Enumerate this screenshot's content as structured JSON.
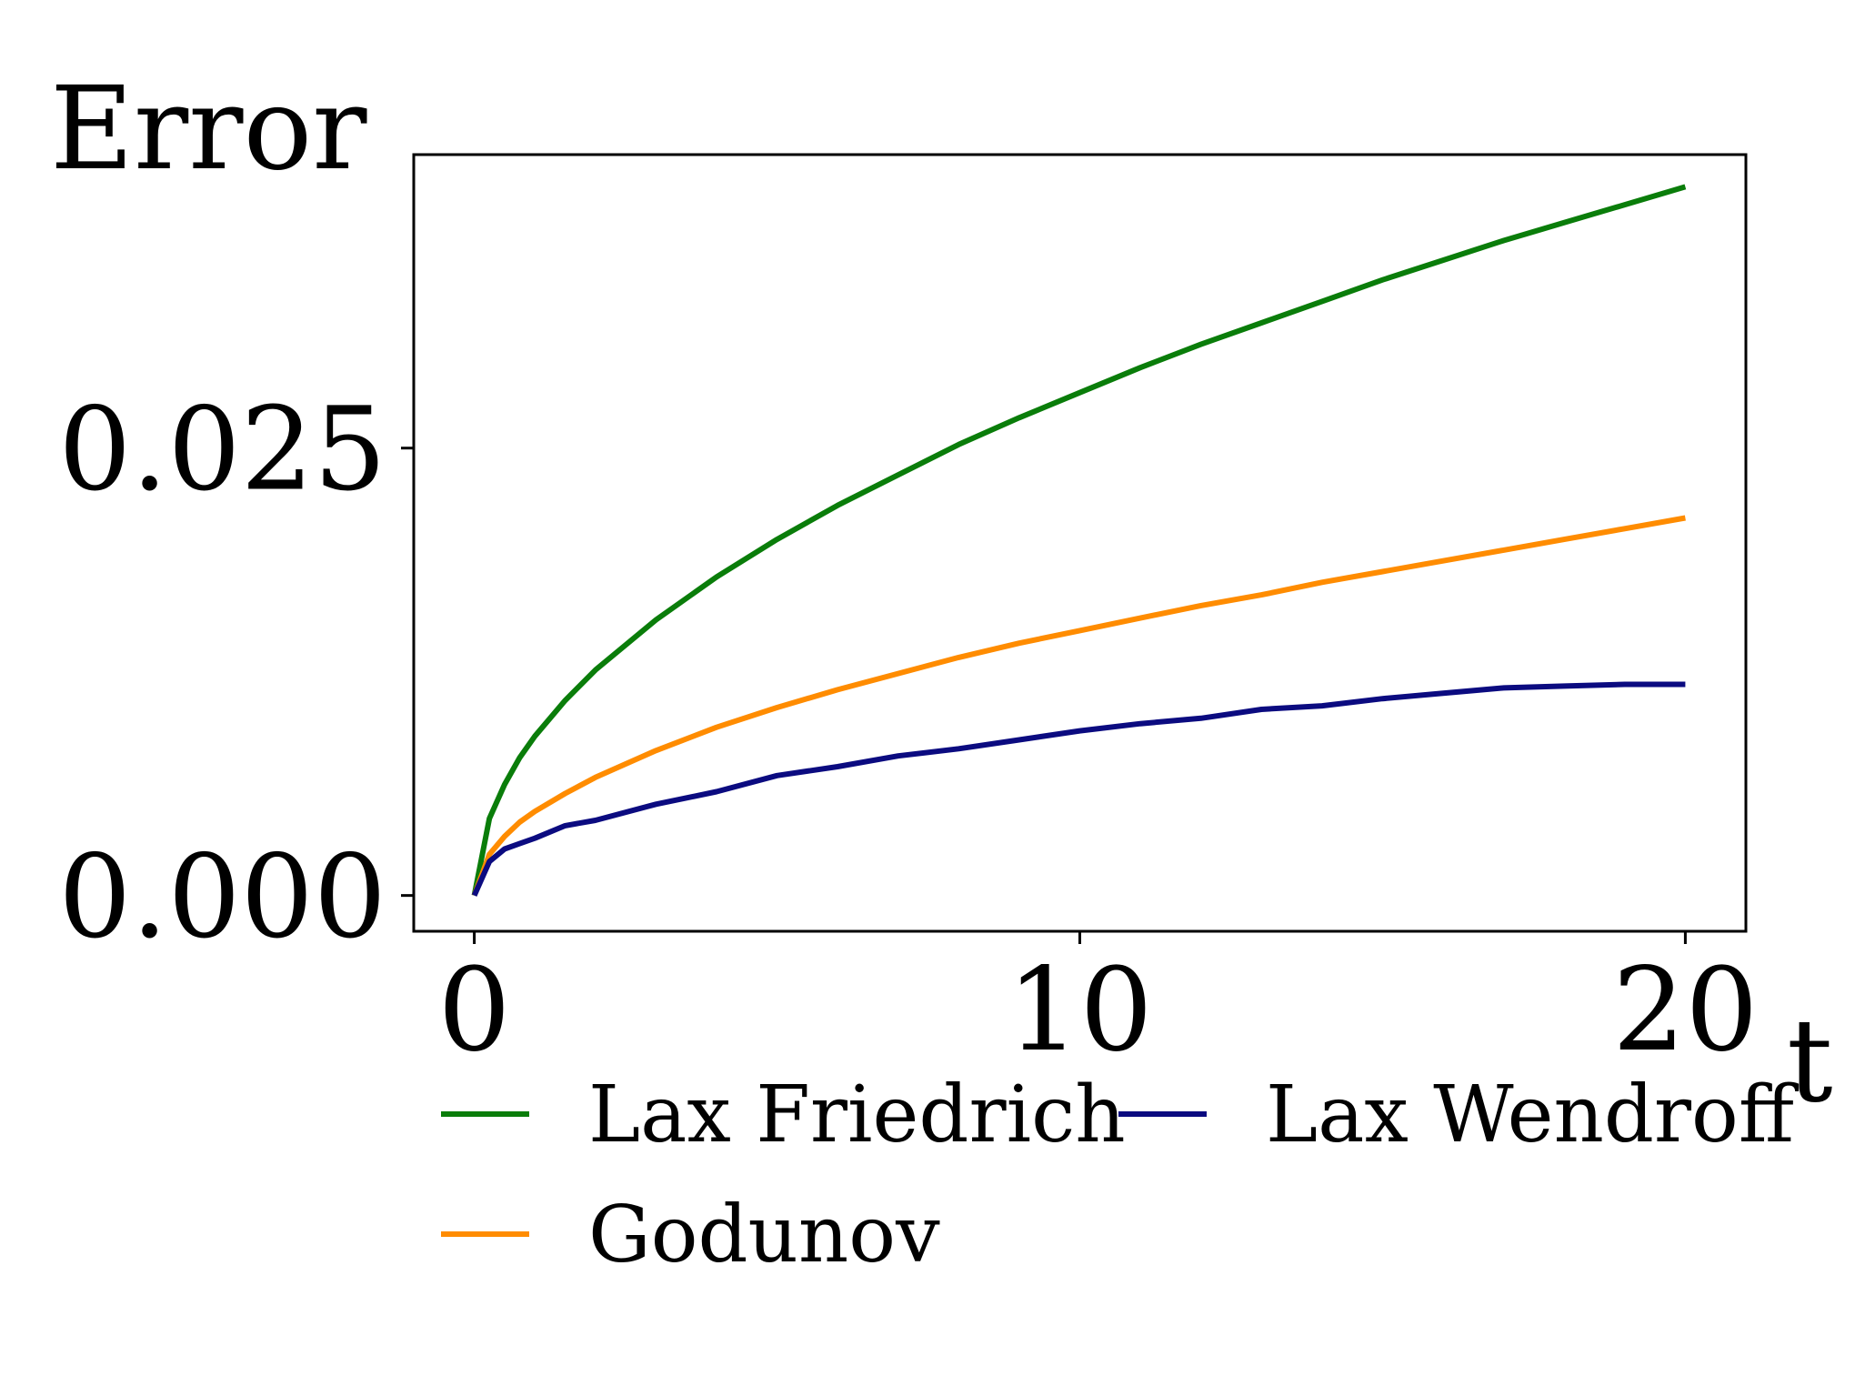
{
  "chart_data": {
    "type": "line",
    "title": "",
    "xlabel": "t",
    "ylabel": "Error",
    "xlim": [
      -1,
      21
    ],
    "ylim": [
      -0.002,
      0.0414
    ],
    "xticks": [
      0,
      10,
      20
    ],
    "xtick_labels": [
      "0",
      "10",
      "20"
    ],
    "yticks": [
      0.0,
      0.025
    ],
    "ytick_labels": [
      "0.000",
      "0.025"
    ],
    "grid": false,
    "legend": {
      "placement": "below-plot",
      "columns": 2
    },
    "colors": {
      "Lax Friedrich": "#0a7d0a",
      "Godunov": "#ff8c00",
      "Lax Wendroff": "#0b0b80"
    },
    "series": [
      {
        "name": "Lax Friedrich",
        "color": "#0a7d0a",
        "x": [
          0,
          0.25,
          0.5,
          0.75,
          1,
          1.5,
          2,
          3,
          4,
          5,
          6,
          7,
          8,
          9,
          10,
          11,
          12,
          13,
          14,
          15,
          16,
          17,
          18,
          19,
          20
        ],
        "y": [
          0,
          0.0043,
          0.0062,
          0.0077,
          0.0089,
          0.0109,
          0.0126,
          0.0154,
          0.0178,
          0.0199,
          0.0218,
          0.0235,
          0.0252,
          0.0267,
          0.0281,
          0.0295,
          0.0308,
          0.032,
          0.0332,
          0.0344,
          0.0355,
          0.0366,
          0.0376,
          0.0386,
          0.0396
        ]
      },
      {
        "name": "Godunov",
        "color": "#ff8c00",
        "x": [
          0,
          0.25,
          0.5,
          0.75,
          1,
          1.5,
          2,
          3,
          4,
          5,
          6,
          7,
          8,
          9,
          10,
          11,
          12,
          13,
          14,
          15,
          16,
          17,
          18,
          19,
          20
        ],
        "y": [
          0,
          0.0023,
          0.0033,
          0.0041,
          0.0047,
          0.0057,
          0.0066,
          0.0081,
          0.0094,
          0.0105,
          0.0115,
          0.0124,
          0.0133,
          0.0141,
          0.0148,
          0.0155,
          0.0162,
          0.0168,
          0.0175,
          0.0181,
          0.0187,
          0.0193,
          0.0199,
          0.0205,
          0.0211
        ]
      },
      {
        "name": "Lax Wendroff",
        "color": "#0b0b80",
        "x": [
          0,
          0.25,
          0.5,
          0.75,
          1,
          1.5,
          2,
          3,
          4,
          5,
          6,
          7,
          8,
          9,
          10,
          11,
          12,
          13,
          14,
          15,
          16,
          17,
          18,
          19,
          20
        ],
        "y": [
          0,
          0.0019,
          0.0026,
          0.0029,
          0.0032,
          0.0039,
          0.0042,
          0.0051,
          0.0058,
          0.0067,
          0.0072,
          0.0078,
          0.0082,
          0.0087,
          0.0092,
          0.0096,
          0.0099,
          0.0104,
          0.0106,
          0.011,
          0.0113,
          0.0116,
          0.0117,
          0.0118,
          0.0118
        ]
      }
    ]
  }
}
